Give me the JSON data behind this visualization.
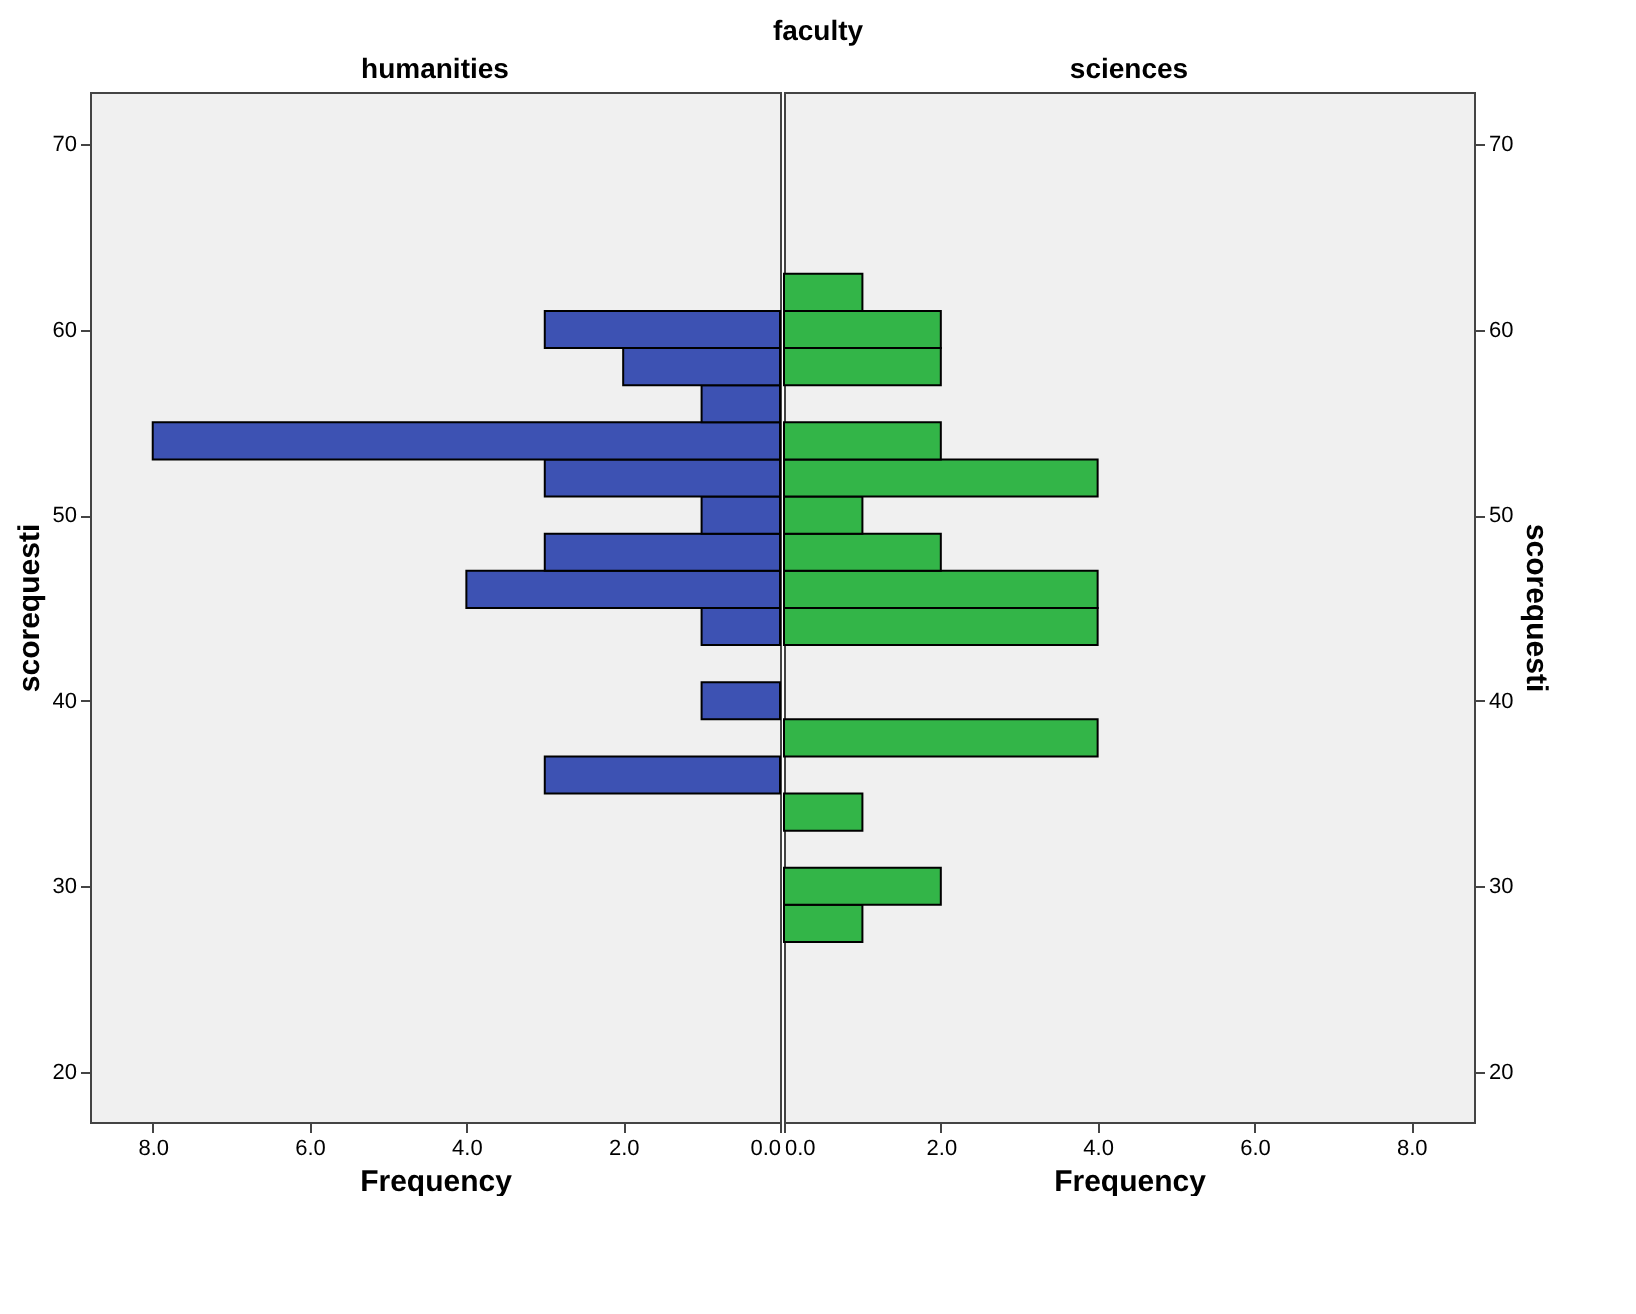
{
  "chart_data": [
    {
      "type": "bar",
      "orientation": "horizontal",
      "title": "humanities",
      "annotations": [
        "faculty"
      ],
      "xlabel": "Frequency",
      "ylabel": "scorequesti",
      "color": "#3d52b3",
      "x": [
        28,
        30,
        32,
        34,
        36,
        38,
        40,
        42,
        44,
        46,
        48,
        50,
        52,
        54,
        56,
        58,
        60,
        62
      ],
      "values": [
        0,
        0,
        0,
        0,
        3,
        0,
        1,
        0,
        1,
        4,
        3,
        1,
        3,
        8,
        1,
        2,
        3,
        0
      ],
      "xlim": [
        8.8,
        0
      ],
      "xticks": [
        {
          "value": 8,
          "label": "8.0"
        },
        {
          "value": 6,
          "label": "6.0"
        },
        {
          "value": 4,
          "label": "4.0"
        },
        {
          "value": 2,
          "label": "2.0"
        },
        {
          "value": 0,
          "label": "0.0"
        }
      ],
      "ylim": [
        17.3,
        72.8
      ],
      "yticks": [
        20,
        30,
        40,
        50,
        60,
        70
      ],
      "grid": false
    },
    {
      "type": "bar",
      "orientation": "horizontal",
      "title": "sciences",
      "xlabel": "Frequency",
      "ylabel": "scorequesti",
      "color": "#33b548",
      "x": [
        28,
        30,
        32,
        34,
        36,
        38,
        40,
        42,
        44,
        46,
        48,
        50,
        52,
        54,
        56,
        58,
        60,
        62
      ],
      "values": [
        1,
        2,
        0,
        1,
        0,
        4,
        0,
        0,
        4,
        4,
        2,
        1,
        4,
        2,
        0,
        2,
        2,
        1
      ],
      "xlim": [
        0,
        8.8
      ],
      "xticks": [
        {
          "value": 0,
          "label": "0.0"
        },
        {
          "value": 2,
          "label": "2.0"
        },
        {
          "value": 4,
          "label": "4.0"
        },
        {
          "value": 6,
          "label": "6.0"
        },
        {
          "value": 8,
          "label": "8.0"
        }
      ],
      "ylim": [
        17.3,
        72.8
      ],
      "yticks": [
        20,
        30,
        40,
        50,
        60,
        70
      ],
      "grid": false
    }
  ]
}
